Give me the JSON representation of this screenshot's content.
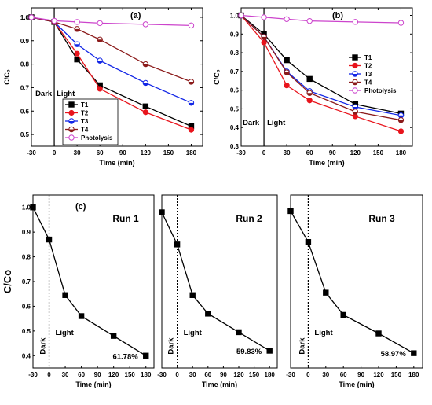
{
  "chart_data": [
    {
      "id": "a",
      "type": "line",
      "panel_label": "(a)",
      "xlabel": "Time (min)",
      "ylabel": "C/C₀",
      "xlim": [
        -30,
        195
      ],
      "ylim": [
        0.45,
        1.04
      ],
      "xticks": [
        -30,
        0,
        30,
        60,
        90,
        120,
        150,
        180
      ],
      "yticks": [
        0.5,
        0.6,
        0.7,
        0.8,
        0.9,
        1.0
      ],
      "x": [
        -30,
        0,
        30,
        60,
        120,
        180
      ],
      "divider_x": 0,
      "annotations": [
        "Dark",
        "Light"
      ],
      "legend_position": "bottom-left",
      "series": [
        {
          "name": "T1",
          "color": "#000000",
          "marker": "square",
          "values": [
            1.0,
            0.98,
            0.82,
            0.71,
            0.62,
            0.535
          ]
        },
        {
          "name": "T2",
          "color": "#e8141c",
          "marker": "circle",
          "values": [
            1.0,
            0.98,
            0.845,
            0.695,
            0.595,
            0.52
          ]
        },
        {
          "name": "T3",
          "color": "#1226e6",
          "marker": "half-circle",
          "values": [
            1.0,
            0.98,
            0.885,
            0.815,
            0.72,
            0.635
          ]
        },
        {
          "name": "T4",
          "color": "#8b1a1a",
          "marker": "half-circle",
          "values": [
            1.0,
            0.98,
            0.95,
            0.905,
            0.8,
            0.725
          ]
        },
        {
          "name": "Photolysis",
          "color": "#cc44cc",
          "marker": "open-circle",
          "values": [
            1.0,
            0.985,
            0.98,
            0.975,
            0.97,
            0.965
          ]
        }
      ]
    },
    {
      "id": "b",
      "type": "line",
      "panel_label": "(b)",
      "xlabel": "Time (min)",
      "ylabel": "C/C₀",
      "xlim": [
        -30,
        195
      ],
      "ylim": [
        0.3,
        1.04
      ],
      "xticks": [
        -30,
        0,
        30,
        60,
        90,
        120,
        150,
        180
      ],
      "yticks": [
        0.3,
        0.4,
        0.5,
        0.6,
        0.7,
        0.8,
        0.9,
        1.0
      ],
      "x": [
        -30,
        0,
        30,
        60,
        120,
        180
      ],
      "divider_x": 0,
      "annotations": [
        "Dark",
        "Light"
      ],
      "legend_position": "right",
      "series": [
        {
          "name": "T1",
          "color": "#000000",
          "marker": "square",
          "values": [
            1.0,
            0.9,
            0.76,
            0.66,
            0.525,
            0.475
          ]
        },
        {
          "name": "T2",
          "color": "#e8141c",
          "marker": "circle",
          "values": [
            1.0,
            0.855,
            0.625,
            0.545,
            0.46,
            0.38
          ]
        },
        {
          "name": "T3",
          "color": "#1226e6",
          "marker": "half-circle",
          "values": [
            1.0,
            0.885,
            0.7,
            0.595,
            0.51,
            0.465
          ]
        },
        {
          "name": "T4",
          "color": "#8b1a1a",
          "marker": "half-circle",
          "values": [
            1.0,
            0.885,
            0.695,
            0.585,
            0.485,
            0.44
          ]
        },
        {
          "name": "Photolysis",
          "color": "#cc44cc",
          "marker": "open-circle",
          "values": [
            1.0,
            0.99,
            0.98,
            0.97,
            0.965,
            0.96
          ]
        }
      ]
    },
    {
      "id": "c1",
      "type": "line",
      "panel_label": "(c)",
      "title": "Run 1",
      "xlabel": "Time (min)",
      "ylabel": "C/Co",
      "xlim": [
        -30,
        195
      ],
      "ylim": [
        0.35,
        1.05
      ],
      "xticks": [
        -30,
        0,
        30,
        60,
        90,
        120,
        150,
        180
      ],
      "yticks": [
        0.4,
        0.5,
        0.6,
        0.7,
        0.8,
        0.9,
        1.0
      ],
      "x": [
        -30,
        0,
        30,
        60,
        120,
        180
      ],
      "divider_x": 0,
      "annotations": [
        "Dark",
        "Light"
      ],
      "removal_label": "61.78%",
      "series": [
        {
          "color": "#000000",
          "marker": "square",
          "values": [
            1.0,
            0.87,
            0.645,
            0.56,
            0.48,
            0.4
          ]
        }
      ]
    },
    {
      "id": "c2",
      "type": "line",
      "title": "Run 2",
      "xlabel": "Time (min)",
      "xlim": [
        -30,
        195
      ],
      "ylim": [
        0.35,
        1.05
      ],
      "xticks": [
        -30,
        0,
        30,
        60,
        90,
        120,
        150,
        180
      ],
      "x": [
        -30,
        0,
        30,
        60,
        120,
        180
      ],
      "divider_x": 0,
      "annotations": [
        "Dark",
        "Light"
      ],
      "removal_label": "59.83%",
      "series": [
        {
          "color": "#000000",
          "marker": "square",
          "values": [
            0.98,
            0.85,
            0.645,
            0.57,
            0.495,
            0.42
          ]
        }
      ]
    },
    {
      "id": "c3",
      "type": "line",
      "title": "Run 3",
      "xlabel": "Time (min)",
      "xlim": [
        -30,
        195
      ],
      "ylim": [
        0.35,
        1.05
      ],
      "xticks": [
        -30,
        0,
        30,
        60,
        90,
        120,
        150,
        180
      ],
      "x": [
        -30,
        0,
        30,
        60,
        120,
        180
      ],
      "divider_x": 0,
      "annotations": [
        "Dark",
        "Light"
      ],
      "removal_label": "58.97%",
      "series": [
        {
          "color": "#000000",
          "marker": "square",
          "values": [
            0.985,
            0.86,
            0.655,
            0.565,
            0.49,
            0.41
          ]
        }
      ]
    }
  ]
}
